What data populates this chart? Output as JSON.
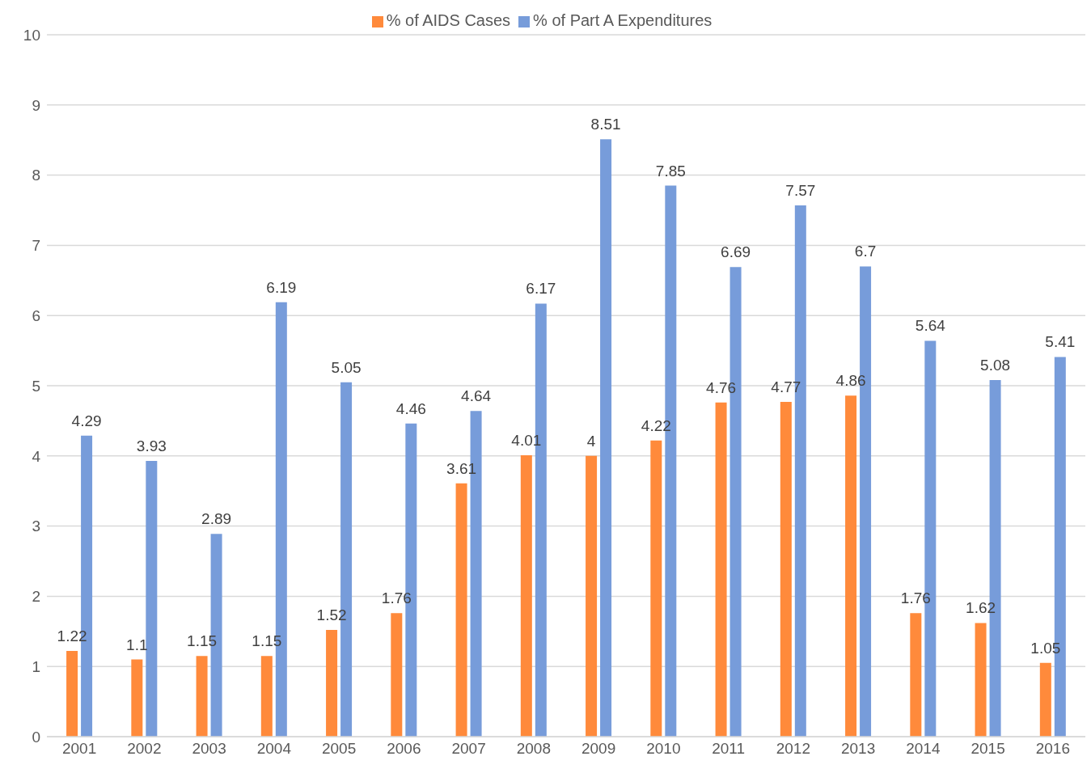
{
  "chart_data": {
    "type": "bar",
    "categories": [
      "2001",
      "2002",
      "2003",
      "2004",
      "2005",
      "2006",
      "2007",
      "2008",
      "2009",
      "2010",
      "2011",
      "2012",
      "2013",
      "2014",
      "2015",
      "2016"
    ],
    "series": [
      {
        "name": "% of AIDS Cases",
        "color": "#ff8a3b",
        "values": [
          1.22,
          1.1,
          1.15,
          1.15,
          1.52,
          1.76,
          3.61,
          4.01,
          4,
          4.22,
          4.76,
          4.77,
          4.86,
          1.76,
          1.62,
          1.05
        ]
      },
      {
        "name": "% of Part A Expenditures",
        "color": "#779cda",
        "values": [
          4.29,
          3.93,
          2.89,
          6.19,
          5.05,
          4.46,
          4.64,
          6.17,
          8.51,
          7.85,
          6.69,
          7.57,
          6.7,
          5.64,
          5.08,
          5.41
        ]
      }
    ],
    "ylim": [
      0,
      10
    ],
    "yticks": [
      0,
      1,
      2,
      3,
      4,
      5,
      6,
      7,
      8,
      9,
      10
    ],
    "grid": "y",
    "legend": "top",
    "data_labels": true
  }
}
